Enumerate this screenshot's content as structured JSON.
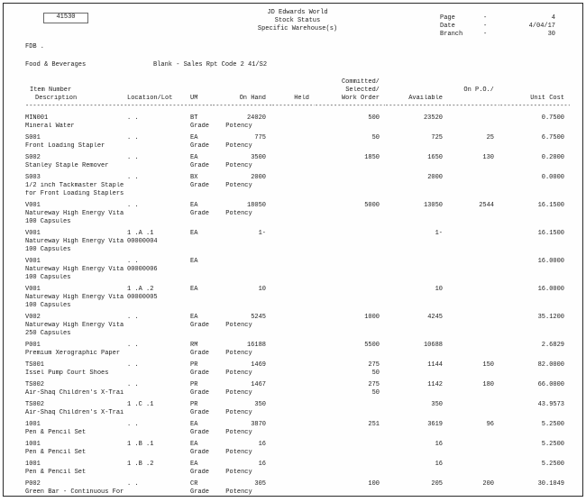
{
  "header": {
    "form_number": "41530",
    "title_lines": [
      "JD Edwards World",
      "Stock Status",
      "Specific Warehouse(s)"
    ],
    "meta": [
      {
        "label": "Page",
        "sep": "-",
        "value": "4"
      },
      {
        "label": "Date",
        "sep": "-",
        "value": "4/04/17"
      },
      {
        "label": "Branch",
        "sep": "-",
        "value": "30"
      }
    ]
  },
  "filters": {
    "warehouse_code": "FDB .",
    "category": "Food & Beverages",
    "report_code": "Blank - Sales Rpt Code 2 41/S2"
  },
  "table": {
    "column_keys": [
      "item",
      "loc",
      "um",
      "on_hand",
      "held",
      "committed",
      "available",
      "on_po",
      "unit_cost"
    ],
    "header_rows": [
      {
        "committed": "Committed/"
      },
      {
        "item": "Item Number",
        "committed": "Selected/",
        "on_po": "On P.O./"
      },
      {
        "item": "Description",
        "loc": "Location/Lot",
        "um": "UM",
        "on_hand": "On Hand",
        "held": "Held",
        "committed": "Work Order",
        "available": "Available",
        "unit_cost": "Unit Cost"
      },
      {
        "item": "--------------------------------",
        "loc": "--------------------",
        "um": "--------",
        "on_hand": "------------------",
        "held": "--------------",
        "committed": "--------------------",
        "available": "------------------",
        "on_po": "----------------",
        "unit_cost": "--------------------"
      }
    ],
    "rows": [
      [
        {
          "item": "MIN001",
          "loc": ". .",
          "um": "BT",
          "on_hand": "24020",
          "committed": "500",
          "available": "23520",
          "unit_cost": "0.7500"
        },
        {
          "item": "Mineral Water",
          "um": "Grade",
          "on_hand": "Potency"
        }
      ],
      [
        {
          "item": "S001",
          "loc": ". .",
          "um": "EA",
          "on_hand": "775",
          "committed": "50",
          "available": "725",
          "on_po": "25",
          "unit_cost": "6.7500"
        },
        {
          "item": "Front Loading Stapler",
          "um": "Grade",
          "on_hand": "Potency"
        }
      ],
      [
        {
          "item": "S002",
          "loc": ". .",
          "um": "EA",
          "on_hand": "3500",
          "committed": "1850",
          "available": "1650",
          "on_po": "130",
          "unit_cost": "0.2000"
        },
        {
          "item": "Stanley Staple Remover",
          "um": "Grade",
          "on_hand": "Potency"
        }
      ],
      [
        {
          "item": "S003",
          "loc": ". .",
          "um": "BX",
          "on_hand": "2000",
          "available": "2000",
          "unit_cost": "0.0000"
        },
        {
          "item": "1/2 inch Tackmaster Staple",
          "um": "Grade",
          "on_hand": "Potency"
        },
        {
          "item": "for Front Loading Staplers"
        }
      ],
      [
        {
          "item": "V001",
          "loc": ". .",
          "um": "EA",
          "on_hand": "18050",
          "committed": "5000",
          "available": "13050",
          "on_po": "2544",
          "unit_cost": "16.1500"
        },
        {
          "item": "Natureway High Energy Vita",
          "um": "Grade",
          "on_hand": "Potency"
        },
        {
          "item": "100 Capsules"
        }
      ],
      [
        {
          "item": "V001",
          "loc": "1 .A .1",
          "um": "EA",
          "on_hand": "1-",
          "available": "1-",
          "unit_cost": "16.1500"
        },
        {
          "item": "Natureway High Energy Vita",
          "loc": "00000004"
        },
        {
          "item": "100 Capsules"
        }
      ],
      [
        {
          "item": "V001",
          "loc": ". .",
          "um": "EA",
          "unit_cost": "16.0000"
        },
        {
          "item": "Natureway High Energy Vita",
          "loc": "00000006"
        },
        {
          "item": "100 Capsules"
        }
      ],
      [
        {
          "item": "V001",
          "loc": "1 .A .2",
          "um": "EA",
          "on_hand": "10",
          "available": "10",
          "unit_cost": "16.0000"
        },
        {
          "item": "Natureway High Energy Vita",
          "loc": "00000005"
        },
        {
          "item": "100 Capsules"
        }
      ],
      [
        {
          "item": "V002",
          "loc": ". .",
          "um": "EA",
          "on_hand": "5245",
          "committed": "1000",
          "available": "4245",
          "unit_cost": "35.1200"
        },
        {
          "item": "Natureway High Energy Vita",
          "um": "Grade",
          "on_hand": "Potency"
        },
        {
          "item": "250 Capsules"
        }
      ],
      [
        {
          "item": "P001",
          "loc": ". .",
          "um": "RM",
          "on_hand": "16188",
          "committed": "5500",
          "available": "10688",
          "unit_cost": "2.6829"
        },
        {
          "item": "Premium Xerographic Paper",
          "um": "Grade",
          "on_hand": "Potency"
        }
      ],
      [
        {
          "item": "TS001",
          "loc": ". .",
          "um": "PR",
          "on_hand": "1469",
          "committed": "275",
          "available": "1144",
          "on_po": "150",
          "unit_cost": "82.0000"
        },
        {
          "item": "Issel Pump Court Shoes",
          "um": "Grade",
          "on_hand": "Potency",
          "committed": "50"
        }
      ],
      [
        {
          "item": "TS002",
          "loc": ". .",
          "um": "PR",
          "on_hand": "1467",
          "committed": "275",
          "available": "1142",
          "on_po": "180",
          "unit_cost": "66.0000"
        },
        {
          "item": "Air-Shaq Children's X-Trai",
          "um": "Grade",
          "on_hand": "Potency",
          "committed": "50"
        }
      ],
      [
        {
          "item": "TS002",
          "loc": "1 .C .1",
          "um": "PR",
          "on_hand": "350",
          "available": "350",
          "unit_cost": "43.9573"
        },
        {
          "item": "Air-Shaq Children's X-Trai",
          "um": "Grade",
          "on_hand": "Potency"
        }
      ],
      [
        {
          "item": "1001",
          "loc": ". .",
          "um": "EA",
          "on_hand": "3870",
          "committed": "251",
          "available": "3619",
          "on_po": "96",
          "unit_cost": "5.2500"
        },
        {
          "item": "Pen & Pencil Set",
          "um": "Grade",
          "on_hand": "Potency"
        }
      ],
      [
        {
          "item": "1001",
          "loc": "1 .B .1",
          "um": "EA",
          "on_hand": "16",
          "available": "16",
          "unit_cost": "5.2500"
        },
        {
          "item": "Pen & Pencil Set",
          "um": "Grade",
          "on_hand": "Potency"
        }
      ],
      [
        {
          "item": "1001",
          "loc": "1 .B .2",
          "um": "EA",
          "on_hand": "16",
          "available": "16",
          "unit_cost": "5.2500"
        },
        {
          "item": "Pen & Pencil Set",
          "um": "Grade",
          "on_hand": "Potency"
        }
      ],
      [
        {
          "item": "P002",
          "loc": ". .",
          "um": "CR",
          "on_hand": "305",
          "committed": "100",
          "available": "205",
          "on_po": "200",
          "unit_cost": "30.1049"
        },
        {
          "item": "Green Bar - Continuous For",
          "um": "Grade",
          "on_hand": "Potency"
        }
      ]
    ]
  }
}
